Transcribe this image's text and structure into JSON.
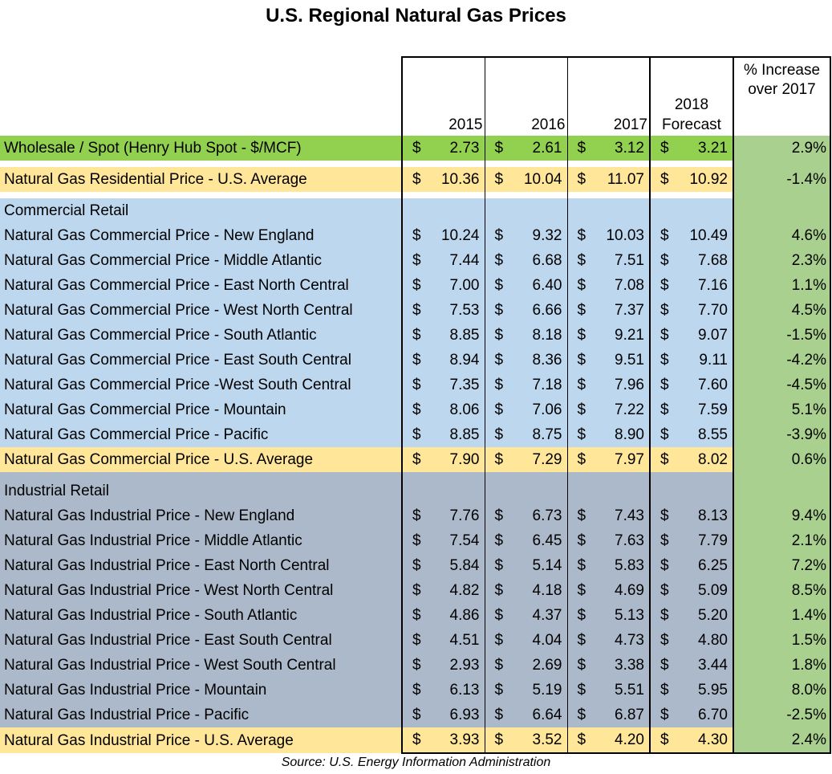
{
  "chart_data": {
    "type": "table",
    "title": "U.S. Regional Natural Gas Prices",
    "source": "Source: U.S. Energy Information Administration",
    "columns": {
      "y2015": "2015",
      "y2016": "2016",
      "y2017": "2017",
      "y2018_line1": "2018",
      "y2018_line2": "Forecast",
      "pct_line1": "% Increase",
      "pct_line2": "over 2017"
    },
    "currency": "$",
    "rows": [
      {
        "kind": "wholesale",
        "label": "Wholesale / Spot (Henry Hub Spot - $/MCF)",
        "v2015": "2.73",
        "v2016": "2.61",
        "v2017": "3.12",
        "v2018": "3.21",
        "pct": "2.9%"
      },
      {
        "kind": "spacer"
      },
      {
        "kind": "avg",
        "label": "Natural Gas Residential Price - U.S. Average",
        "v2015": "10.36",
        "v2016": "10.04",
        "v2017": "11.07",
        "v2018": "10.92",
        "pct": "-1.4%"
      },
      {
        "kind": "spacer"
      },
      {
        "kind": "com-header",
        "label": "Commercial Retail"
      },
      {
        "kind": "com",
        "label": "Natural Gas Commercial Price - New England",
        "v2015": "10.24",
        "v2016": "9.32",
        "v2017": "10.03",
        "v2018": "10.49",
        "pct": "4.6%"
      },
      {
        "kind": "com",
        "label": "Natural Gas Commercial Price - Middle Atlantic",
        "v2015": "7.44",
        "v2016": "6.68",
        "v2017": "7.51",
        "v2018": "7.68",
        "pct": "2.3%"
      },
      {
        "kind": "com",
        "label": "Natural Gas Commercial Price - East North Central",
        "v2015": "7.00",
        "v2016": "6.40",
        "v2017": "7.08",
        "v2018": "7.16",
        "pct": "1.1%"
      },
      {
        "kind": "com",
        "label": "Natural Gas Commercial Price - West North Central",
        "v2015": "7.53",
        "v2016": "6.66",
        "v2017": "7.37",
        "v2018": "7.70",
        "pct": "4.5%"
      },
      {
        "kind": "com",
        "label": "Natural Gas Commercial Price - South Atlantic",
        "v2015": "8.85",
        "v2016": "8.18",
        "v2017": "9.21",
        "v2018": "9.07",
        "pct": "-1.5%"
      },
      {
        "kind": "com",
        "label": "Natural Gas Commercial Price - East South Central",
        "v2015": "8.94",
        "v2016": "8.36",
        "v2017": "9.51",
        "v2018": "9.11",
        "pct": "-4.2%"
      },
      {
        "kind": "com",
        "label": "Natural Gas Commercial Price -West South Central",
        "v2015": "7.35",
        "v2016": "7.18",
        "v2017": "7.96",
        "v2018": "7.60",
        "pct": "-4.5%"
      },
      {
        "kind": "com",
        "label": "Natural Gas Commercial Price - Mountain",
        "v2015": "8.06",
        "v2016": "7.06",
        "v2017": "7.22",
        "v2018": "7.59",
        "pct": "5.1%"
      },
      {
        "kind": "com",
        "label": "Natural Gas Commercial Price - Pacific",
        "v2015": "8.85",
        "v2016": "8.75",
        "v2017": "8.90",
        "v2018": "8.55",
        "pct": "-3.9%"
      },
      {
        "kind": "avg",
        "label": "Natural Gas Commercial Price - U.S. Average",
        "v2015": "7.90",
        "v2016": "7.29",
        "v2017": "7.97",
        "v2018": "8.02",
        "pct": "0.6%"
      },
      {
        "kind": "spacer-ind"
      },
      {
        "kind": "ind-header",
        "label": "Industrial Retail"
      },
      {
        "kind": "ind",
        "label": "Natural Gas Industrial Price - New England",
        "v2015": "7.76",
        "v2016": "6.73",
        "v2017": "7.43",
        "v2018": "8.13",
        "pct": "9.4%"
      },
      {
        "kind": "ind",
        "label": "Natural Gas Industrial Price - Middle Atlantic",
        "v2015": "7.54",
        "v2016": "6.45",
        "v2017": "7.63",
        "v2018": "7.79",
        "pct": "2.1%"
      },
      {
        "kind": "ind",
        "label": "Natural Gas Industrial Price - East North Central",
        "v2015": "5.84",
        "v2016": "5.14",
        "v2017": "5.83",
        "v2018": "6.25",
        "pct": "7.2%"
      },
      {
        "kind": "ind",
        "label": "Natural Gas Industrial Price - West North Central",
        "v2015": "4.82",
        "v2016": "4.18",
        "v2017": "4.69",
        "v2018": "5.09",
        "pct": "8.5%"
      },
      {
        "kind": "ind",
        "label": "Natural Gas Industrial Price - South Atlantic",
        "v2015": "4.86",
        "v2016": "4.37",
        "v2017": "5.13",
        "v2018": "5.20",
        "pct": "1.4%"
      },
      {
        "kind": "ind",
        "label": "Natural Gas Industrial Price - East South Central",
        "v2015": "4.51",
        "v2016": "4.04",
        "v2017": "4.73",
        "v2018": "4.80",
        "pct": "1.5%"
      },
      {
        "kind": "ind",
        "label": "Natural Gas Industrial Price - West South Central",
        "v2015": "2.93",
        "v2016": "2.69",
        "v2017": "3.38",
        "v2018": "3.44",
        "pct": "1.8%"
      },
      {
        "kind": "ind",
        "label": "Natural Gas Industrial Price - Mountain",
        "v2015": "6.13",
        "v2016": "5.19",
        "v2017": "5.51",
        "v2018": "5.95",
        "pct": "8.0%"
      },
      {
        "kind": "ind",
        "label": "Natural Gas Industrial Price - Pacific",
        "v2015": "6.93",
        "v2016": "6.64",
        "v2017": "6.87",
        "v2018": "6.70",
        "pct": "-2.5%"
      },
      {
        "kind": "avg",
        "label": "Natural Gas Industrial Price - U.S. Average",
        "v2015": "3.93",
        "v2016": "3.52",
        "v2017": "4.20",
        "v2018": "4.30",
        "pct": "2.4%"
      }
    ]
  }
}
